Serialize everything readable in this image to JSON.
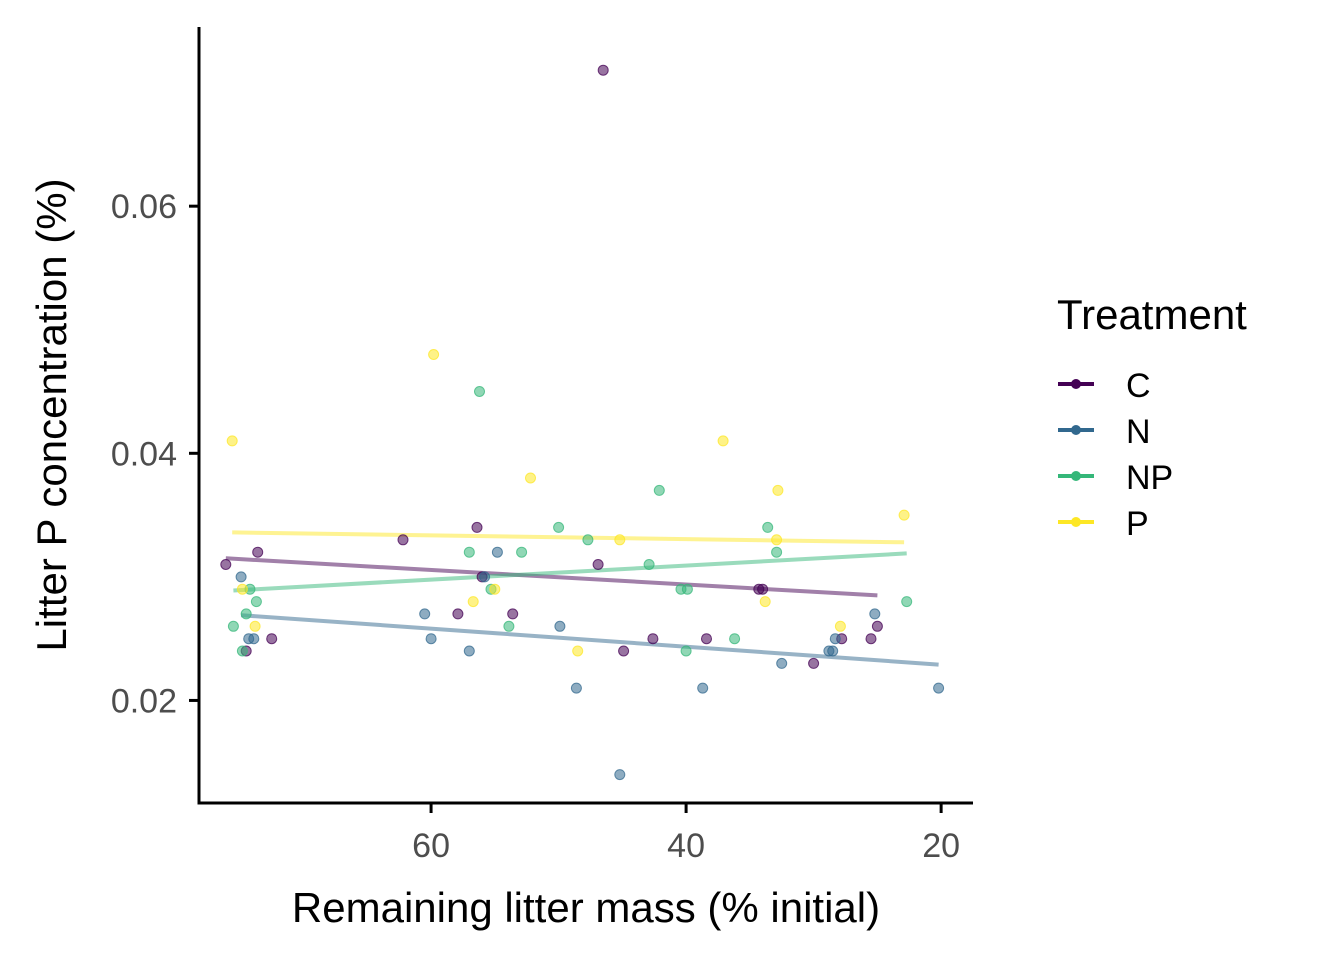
{
  "chart_data": {
    "type": "scatter",
    "xlabel": "Remaining litter mass (% initial)",
    "ylabel": "Litter P concentration (%)",
    "x_reversed": true,
    "xlim": [
      17.5,
      78.2
    ],
    "ylim": [
      0.0117,
      0.0745
    ],
    "x_ticks": [
      60,
      40,
      20
    ],
    "x_tick_labels": [
      "60",
      "40",
      "20"
    ],
    "y_ticks": [
      0.02,
      0.04,
      0.06
    ],
    "y_tick_labels": [
      "0.02",
      "0.04",
      "0.06"
    ],
    "grid": false,
    "legend": {
      "title": "Treatment",
      "position": "right"
    },
    "series": [
      {
        "name": "C",
        "color": "#440154",
        "points": [
          [
            76.1,
            0.031
          ],
          [
            73.6,
            0.032
          ],
          [
            72.5,
            0.025
          ],
          [
            74.5,
            0.024
          ],
          [
            62.2,
            0.033
          ],
          [
            57.9,
            0.027
          ],
          [
            56.4,
            0.034
          ],
          [
            56.0,
            0.03
          ],
          [
            53.6,
            0.027
          ],
          [
            46.9,
            0.031
          ],
          [
            46.5,
            0.071
          ],
          [
            44.9,
            0.024
          ],
          [
            42.6,
            0.025
          ],
          [
            38.4,
            0.025
          ],
          [
            34.3,
            0.029
          ],
          [
            34.0,
            0.029
          ],
          [
            30.0,
            0.023
          ],
          [
            27.8,
            0.025
          ],
          [
            25.5,
            0.025
          ],
          [
            25.0,
            0.026
          ]
        ],
        "fit": {
          "x": [
            76.1,
            25.0
          ],
          "y": [
            0.0315,
            0.0285
          ]
        }
      },
      {
        "name": "N",
        "color": "#31688E",
        "points": [
          [
            74.9,
            0.03
          ],
          [
            74.3,
            0.025
          ],
          [
            73.9,
            0.025
          ],
          [
            60.5,
            0.027
          ],
          [
            60.0,
            0.025
          ],
          [
            57.0,
            0.024
          ],
          [
            54.8,
            0.032
          ],
          [
            55.8,
            0.03
          ],
          [
            49.9,
            0.026
          ],
          [
            48.6,
            0.021
          ],
          [
            45.2,
            0.014
          ],
          [
            38.7,
            0.021
          ],
          [
            32.5,
            0.023
          ],
          [
            28.8,
            0.024
          ],
          [
            28.5,
            0.024
          ],
          [
            28.3,
            0.025
          ],
          [
            25.2,
            0.027
          ],
          [
            20.2,
            0.021
          ]
        ],
        "fit": {
          "x": [
            74.9,
            20.2
          ],
          "y": [
            0.0269,
            0.0229
          ]
        }
      },
      {
        "name": "NP",
        "color": "#35B779",
        "points": [
          [
            75.5,
            0.026
          ],
          [
            74.8,
            0.024
          ],
          [
            74.5,
            0.027
          ],
          [
            74.2,
            0.029
          ],
          [
            73.7,
            0.028
          ],
          [
            57.0,
            0.032
          ],
          [
            56.2,
            0.045
          ],
          [
            55.3,
            0.029
          ],
          [
            53.9,
            0.026
          ],
          [
            52.9,
            0.032
          ],
          [
            50.0,
            0.034
          ],
          [
            47.7,
            0.033
          ],
          [
            42.9,
            0.031
          ],
          [
            42.1,
            0.037
          ],
          [
            40.4,
            0.029
          ],
          [
            39.9,
            0.029
          ],
          [
            40.0,
            0.024
          ],
          [
            36.2,
            0.025
          ],
          [
            33.6,
            0.034
          ],
          [
            32.9,
            0.032
          ],
          [
            22.7,
            0.028
          ]
        ],
        "fit": {
          "x": [
            75.5,
            22.7
          ],
          "y": [
            0.0289,
            0.0319
          ]
        }
      },
      {
        "name": "P",
        "color": "#FDE725",
        "points": [
          [
            75.6,
            0.041
          ],
          [
            74.8,
            0.029
          ],
          [
            73.8,
            0.026
          ],
          [
            59.8,
            0.048
          ],
          [
            56.7,
            0.028
          ],
          [
            55.0,
            0.029
          ],
          [
            52.2,
            0.038
          ],
          [
            48.5,
            0.024
          ],
          [
            45.2,
            0.033
          ],
          [
            37.1,
            0.041
          ],
          [
            33.8,
            0.028
          ],
          [
            32.8,
            0.037
          ],
          [
            32.9,
            0.033
          ],
          [
            27.9,
            0.026
          ],
          [
            22.9,
            0.035
          ]
        ],
        "fit": {
          "x": [
            75.6,
            22.9
          ],
          "y": [
            0.0336,
            0.0328
          ]
        }
      }
    ]
  }
}
